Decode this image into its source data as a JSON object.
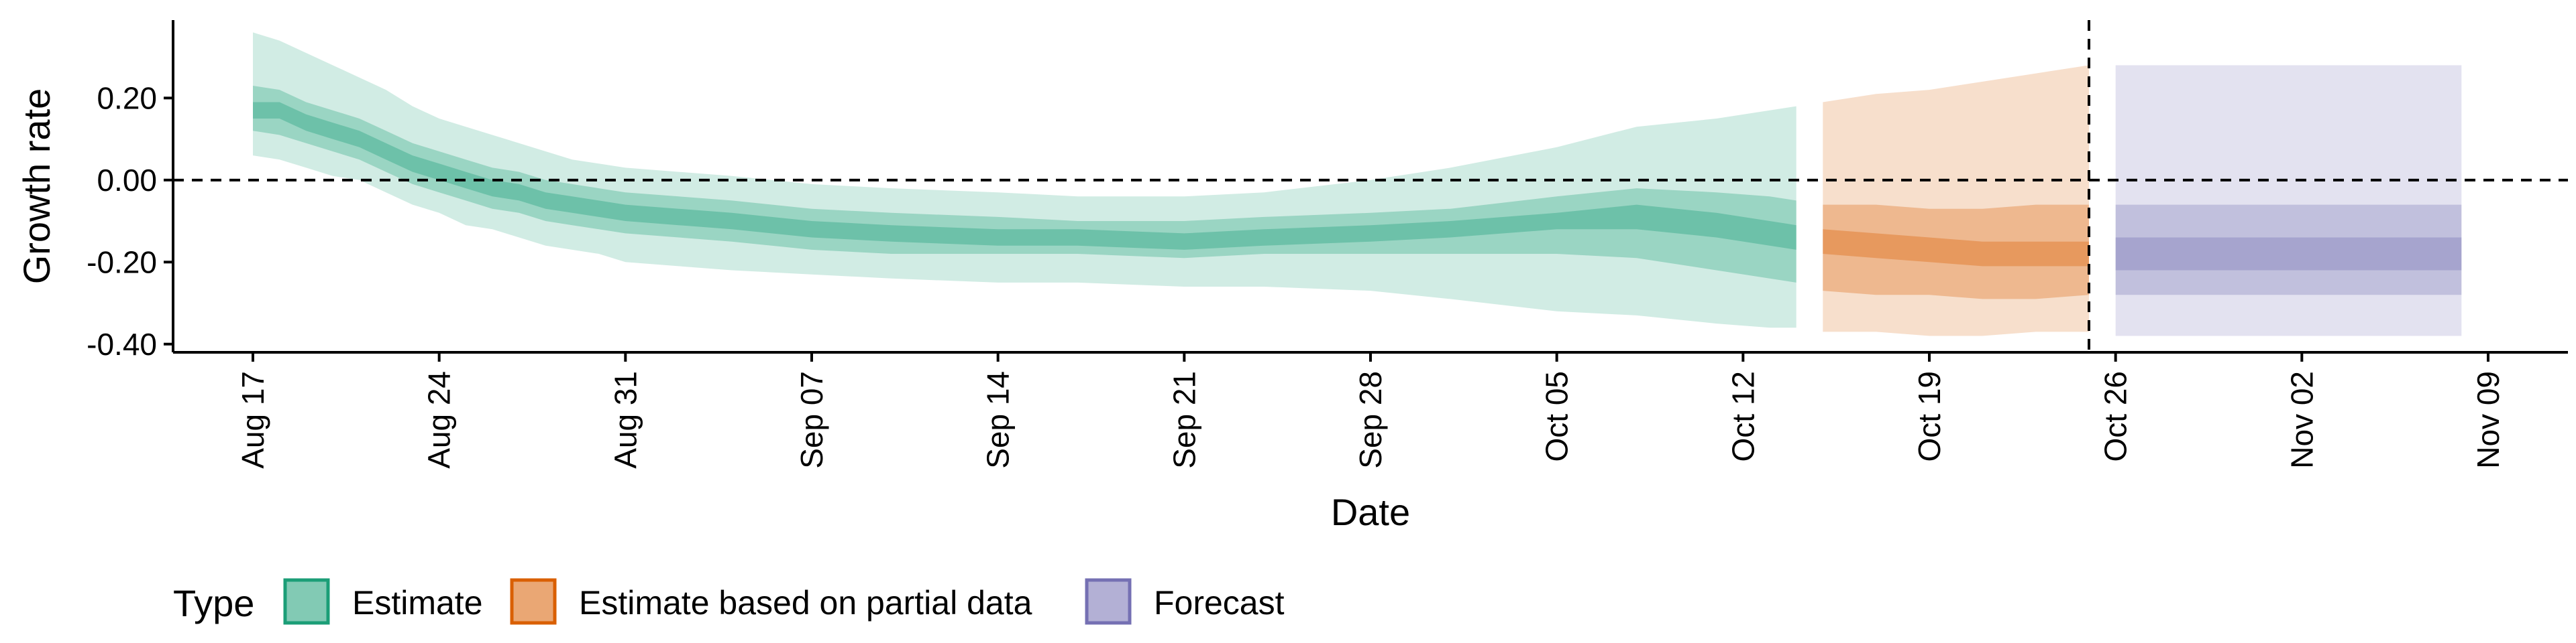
{
  "chart_data": {
    "type": "area",
    "xlabel": "Date",
    "ylabel": "Growth rate",
    "ylim": [
      -0.42,
      0.39
    ],
    "xlim": [
      "2020-08-14",
      "2020-11-12"
    ],
    "y_ticks": [
      {
        "value": 0.2,
        "label": "0.20"
      },
      {
        "value": 0.0,
        "label": "0.00"
      },
      {
        "value": -0.2,
        "label": "-0.20"
      },
      {
        "value": -0.4,
        "label": "-0.40"
      }
    ],
    "x_ticks": [
      {
        "date": "2020-08-17",
        "label": "Aug 17"
      },
      {
        "date": "2020-08-24",
        "label": "Aug 24"
      },
      {
        "date": "2020-08-31",
        "label": "Aug 31"
      },
      {
        "date": "2020-09-07",
        "label": "Sep 07"
      },
      {
        "date": "2020-09-14",
        "label": "Sep 14"
      },
      {
        "date": "2020-09-21",
        "label": "Sep 21"
      },
      {
        "date": "2020-09-28",
        "label": "Sep 28"
      },
      {
        "date": "2020-10-05",
        "label": "Oct 05"
      },
      {
        "date": "2020-10-12",
        "label": "Oct 12"
      },
      {
        "date": "2020-10-19",
        "label": "Oct 19"
      },
      {
        "date": "2020-10-26",
        "label": "Oct 26"
      },
      {
        "date": "2020-11-02",
        "label": "Nov 02"
      },
      {
        "date": "2020-11-09",
        "label": "Nov 09"
      }
    ],
    "reference_lines": [
      {
        "axis": "y",
        "value": 0.0,
        "style": "dashed"
      },
      {
        "axis": "x",
        "value": "2020-10-25",
        "style": "dashed"
      }
    ],
    "grid": false,
    "legend": {
      "title": "Type",
      "position": "bottom-left",
      "entries": [
        {
          "label": "Estimate",
          "color": "#1b9e77"
        },
        {
          "label": "Estimate based on partial data",
          "color": "#d95f02"
        },
        {
          "label": "Forecast",
          "color": "#7570b3"
        }
      ]
    },
    "series": [
      {
        "name": "Estimate",
        "color": "#1b9e77",
        "points": [
          {
            "date": "2020-08-17",
            "median": 0.17,
            "lo20": 0.15,
            "hi20": 0.19,
            "lo50": 0.12,
            "hi50": 0.23,
            "lo90": 0.06,
            "hi90": 0.36
          },
          {
            "date": "2020-08-18",
            "median": 0.17,
            "lo20": 0.15,
            "hi20": 0.19,
            "lo50": 0.11,
            "hi50": 0.22,
            "lo90": 0.05,
            "hi90": 0.34
          },
          {
            "date": "2020-08-19",
            "median": 0.14,
            "lo20": 0.12,
            "hi20": 0.16,
            "lo50": 0.09,
            "hi50": 0.19,
            "lo90": 0.03,
            "hi90": 0.31
          },
          {
            "date": "2020-08-20",
            "median": 0.12,
            "lo20": 0.1,
            "hi20": 0.14,
            "lo50": 0.07,
            "hi50": 0.17,
            "lo90": 0.01,
            "hi90": 0.28
          },
          {
            "date": "2020-08-21",
            "median": 0.1,
            "lo20": 0.08,
            "hi20": 0.12,
            "lo50": 0.05,
            "hi50": 0.15,
            "lo90": 0.0,
            "hi90": 0.25
          },
          {
            "date": "2020-08-22",
            "median": 0.07,
            "lo20": 0.05,
            "hi20": 0.09,
            "lo50": 0.02,
            "hi50": 0.12,
            "lo90": -0.03,
            "hi90": 0.22
          },
          {
            "date": "2020-08-23",
            "median": 0.04,
            "lo20": 0.02,
            "hi20": 0.06,
            "lo50": -0.01,
            "hi50": 0.09,
            "lo90": -0.06,
            "hi90": 0.18
          },
          {
            "date": "2020-08-24",
            "median": 0.02,
            "lo20": 0.0,
            "hi20": 0.04,
            "lo50": -0.03,
            "hi50": 0.07,
            "lo90": -0.08,
            "hi90": 0.15
          },
          {
            "date": "2020-08-25",
            "median": 0.0,
            "lo20": -0.02,
            "hi20": 0.02,
            "lo50": -0.05,
            "hi50": 0.05,
            "lo90": -0.11,
            "hi90": 0.13
          },
          {
            "date": "2020-08-26",
            "median": -0.02,
            "lo20": -0.04,
            "hi20": 0.0,
            "lo50": -0.07,
            "hi50": 0.03,
            "lo90": -0.12,
            "hi90": 0.11
          },
          {
            "date": "2020-08-27",
            "median": -0.03,
            "lo20": -0.05,
            "hi20": -0.01,
            "lo50": -0.08,
            "hi50": 0.02,
            "lo90": -0.14,
            "hi90": 0.09
          },
          {
            "date": "2020-08-28",
            "median": -0.05,
            "lo20": -0.07,
            "hi20": -0.03,
            "lo50": -0.1,
            "hi50": 0.0,
            "lo90": -0.16,
            "hi90": 0.07
          },
          {
            "date": "2020-08-29",
            "median": -0.06,
            "lo20": -0.08,
            "hi20": -0.04,
            "lo50": -0.11,
            "hi50": -0.01,
            "lo90": -0.17,
            "hi90": 0.05
          },
          {
            "date": "2020-08-30",
            "median": -0.07,
            "lo20": -0.09,
            "hi20": -0.05,
            "lo50": -0.12,
            "hi50": -0.02,
            "lo90": -0.18,
            "hi90": 0.04
          },
          {
            "date": "2020-08-31",
            "median": -0.08,
            "lo20": -0.1,
            "hi20": -0.06,
            "lo50": -0.13,
            "hi50": -0.03,
            "lo90": -0.2,
            "hi90": 0.03
          },
          {
            "date": "2020-09-02",
            "median": -0.09,
            "lo20": -0.11,
            "hi20": -0.07,
            "lo50": -0.14,
            "hi50": -0.04,
            "lo90": -0.21,
            "hi90": 0.02
          },
          {
            "date": "2020-09-04",
            "median": -0.1,
            "lo20": -0.12,
            "hi20": -0.08,
            "lo50": -0.15,
            "hi50": -0.05,
            "lo90": -0.22,
            "hi90": 0.01
          },
          {
            "date": "2020-09-07",
            "median": -0.12,
            "lo20": -0.14,
            "hi20": -0.1,
            "lo50": -0.17,
            "hi50": -0.07,
            "lo90": -0.23,
            "hi90": -0.01
          },
          {
            "date": "2020-09-10",
            "median": -0.13,
            "lo20": -0.15,
            "hi20": -0.11,
            "lo50": -0.18,
            "hi50": -0.08,
            "lo90": -0.24,
            "hi90": -0.02
          },
          {
            "date": "2020-09-14",
            "median": -0.14,
            "lo20": -0.16,
            "hi20": -0.12,
            "lo50": -0.18,
            "hi50": -0.09,
            "lo90": -0.25,
            "hi90": -0.03
          },
          {
            "date": "2020-09-17",
            "median": -0.14,
            "lo20": -0.16,
            "hi20": -0.12,
            "lo50": -0.18,
            "hi50": -0.1,
            "lo90": -0.25,
            "hi90": -0.04
          },
          {
            "date": "2020-09-21",
            "median": -0.15,
            "lo20": -0.17,
            "hi20": -0.13,
            "lo50": -0.19,
            "hi50": -0.1,
            "lo90": -0.26,
            "hi90": -0.04
          },
          {
            "date": "2020-09-24",
            "median": -0.14,
            "lo20": -0.16,
            "hi20": -0.12,
            "lo50": -0.18,
            "hi50": -0.09,
            "lo90": -0.26,
            "hi90": -0.03
          },
          {
            "date": "2020-09-28",
            "median": -0.13,
            "lo20": -0.15,
            "hi20": -0.11,
            "lo50": -0.18,
            "hi50": -0.08,
            "lo90": -0.27,
            "hi90": 0.0
          },
          {
            "date": "2020-10-01",
            "median": -0.12,
            "lo20": -0.14,
            "hi20": -0.1,
            "lo50": -0.18,
            "hi50": -0.07,
            "lo90": -0.29,
            "hi90": 0.03
          },
          {
            "date": "2020-10-05",
            "median": -0.1,
            "lo20": -0.12,
            "hi20": -0.08,
            "lo50": -0.18,
            "hi50": -0.04,
            "lo90": -0.32,
            "hi90": 0.08
          },
          {
            "date": "2020-10-08",
            "median": -0.09,
            "lo20": -0.12,
            "hi20": -0.06,
            "lo50": -0.19,
            "hi50": -0.02,
            "lo90": -0.33,
            "hi90": 0.13
          },
          {
            "date": "2020-10-11",
            "median": -0.11,
            "lo20": -0.14,
            "hi20": -0.08,
            "lo50": -0.22,
            "hi50": -0.03,
            "lo90": -0.35,
            "hi90": 0.15
          },
          {
            "date": "2020-10-13",
            "median": -0.13,
            "lo20": -0.16,
            "hi20": -0.1,
            "lo50": -0.24,
            "hi50": -0.04,
            "lo90": -0.36,
            "hi90": 0.17
          },
          {
            "date": "2020-10-14",
            "median": -0.14,
            "lo20": -0.17,
            "hi20": -0.11,
            "lo50": -0.25,
            "hi50": -0.05,
            "lo90": -0.36,
            "hi90": 0.18
          }
        ]
      },
      {
        "name": "Estimate based on partial data",
        "color": "#d95f02",
        "points": [
          {
            "date": "2020-10-15",
            "median": -0.15,
            "lo20": -0.18,
            "hi20": -0.12,
            "lo50": -0.27,
            "hi50": -0.06,
            "lo90": -0.37,
            "hi90": 0.19
          },
          {
            "date": "2020-10-17",
            "median": -0.16,
            "lo20": -0.19,
            "hi20": -0.13,
            "lo50": -0.28,
            "hi50": -0.06,
            "lo90": -0.37,
            "hi90": 0.21
          },
          {
            "date": "2020-10-19",
            "median": -0.17,
            "lo20": -0.2,
            "hi20": -0.14,
            "lo50": -0.28,
            "hi50": -0.07,
            "lo90": -0.38,
            "hi90": 0.22
          },
          {
            "date": "2020-10-21",
            "median": -0.18,
            "lo20": -0.21,
            "hi20": -0.15,
            "lo50": -0.29,
            "hi50": -0.07,
            "lo90": -0.38,
            "hi90": 0.24
          },
          {
            "date": "2020-10-23",
            "median": -0.18,
            "lo20": -0.21,
            "hi20": -0.15,
            "lo50": -0.29,
            "hi50": -0.06,
            "lo90": -0.37,
            "hi90": 0.26
          },
          {
            "date": "2020-10-25",
            "median": -0.18,
            "lo20": -0.21,
            "hi20": -0.15,
            "lo50": -0.28,
            "hi50": -0.06,
            "lo90": -0.37,
            "hi90": 0.28
          }
        ]
      },
      {
        "name": "Forecast",
        "color": "#7570b3",
        "points": [
          {
            "date": "2020-10-26",
            "median": -0.18,
            "lo20": -0.22,
            "hi20": -0.14,
            "lo50": -0.28,
            "hi50": -0.06,
            "lo90": -0.38,
            "hi90": 0.28
          },
          {
            "date": "2020-11-08",
            "median": -0.18,
            "lo20": -0.22,
            "hi20": -0.14,
            "lo50": -0.28,
            "hi50": -0.06,
            "lo90": -0.38,
            "hi90": 0.28
          }
        ]
      }
    ]
  }
}
